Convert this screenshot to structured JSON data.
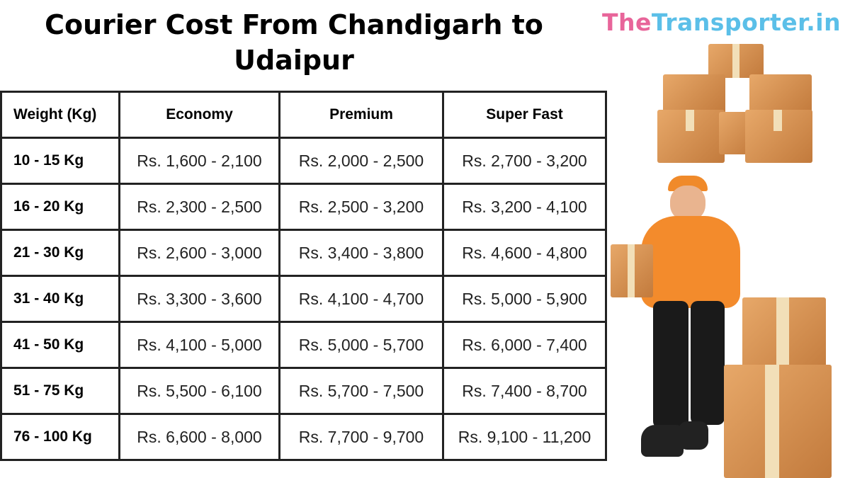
{
  "title": "Courier Cost From Chandigarh to Udaipur",
  "logo": {
    "part1": "The",
    "part2": "Transporter.in",
    "colors": {
      "part1": "#e8659a",
      "part2": "#5bbfe8"
    }
  },
  "table": {
    "headers": [
      "Weight (Kg)",
      "Economy",
      "Premium",
      "Super Fast"
    ],
    "rows": [
      [
        "10 - 15 Kg",
        "Rs. 1,600 - 2,100",
        "Rs. 2,000 - 2,500",
        "Rs. 2,700 - 3,200"
      ],
      [
        "16 - 20 Kg",
        "Rs. 2,300 - 2,500",
        "Rs. 2,500 - 3,200",
        "Rs. 3,200 - 4,100"
      ],
      [
        "21 - 30 Kg",
        "Rs. 2,600 - 3,000",
        "Rs. 3,400 - 3,800",
        "Rs. 4,600 - 4,800"
      ],
      [
        "31 - 40 Kg",
        "Rs. 3,300 - 3,600",
        "Rs. 4,100 - 4,700",
        "Rs. 5,000 - 5,900"
      ],
      [
        "41 - 50 Kg",
        "Rs. 4,100 - 5,000",
        "Rs. 5,000 - 5,700",
        "Rs. 6,000 - 7,400"
      ],
      [
        "51 - 75 Kg",
        "Rs. 5,500 - 6,100",
        "Rs. 5,700 - 7,500",
        "Rs. 7,400 - 8,700"
      ],
      [
        "76 - 100 Kg",
        "Rs. 6,600 - 8,000",
        "Rs. 7,700 - 9,700",
        "Rs. 9,100 - 11,200"
      ]
    ]
  },
  "illustrations": [
    "stacked-boxes-icon",
    "delivery-man-icon"
  ]
}
